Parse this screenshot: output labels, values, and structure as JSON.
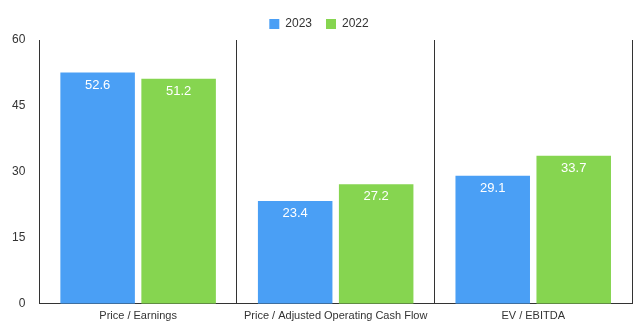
{
  "chart_data": {
    "type": "bar",
    "categories": [
      "Price / Earnings",
      "Price / Adjusted Operating Cash Flow",
      "EV / EBITDA"
    ],
    "series": [
      {
        "name": "2023",
        "color": "#4a9ff5",
        "values": [
          52.6,
          23.4,
          29.1
        ]
      },
      {
        "name": "2022",
        "color": "#86d550",
        "values": [
          51.2,
          27.2,
          33.7
        ]
      }
    ],
    "ylim": [
      0,
      60
    ],
    "yticks": [
      0,
      15,
      30,
      45,
      60
    ],
    "grid": true,
    "legend": "top",
    "data_labels": true
  }
}
